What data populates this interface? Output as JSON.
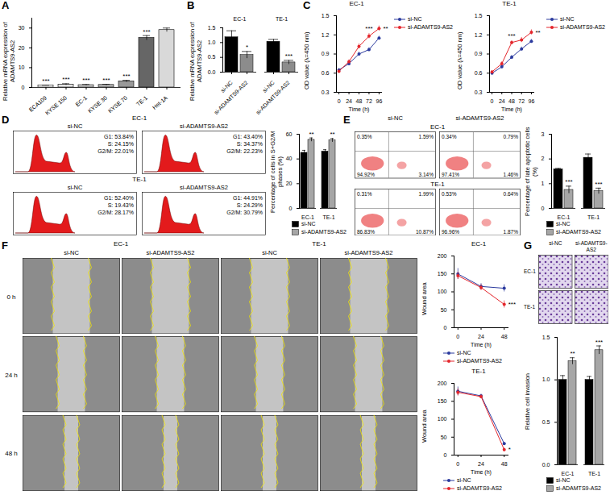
{
  "chart_data": [
    {
      "panel": "A",
      "type": "bar",
      "y_label": "Relative mRNA expression of ADAMTS9-AS2",
      "categories": [
        "ECA109",
        "KYSE 150",
        "EC-1",
        "KYSE 30",
        "KYSE 70",
        "TE-1",
        "Het-1A"
      ],
      "values": [
        1.0,
        1.5,
        1.2,
        1.3,
        3.1,
        25.0,
        29.0
      ],
      "errors": [
        0.1,
        0.4,
        0.3,
        0.3,
        0.5,
        1.2,
        1.0
      ],
      "significance": [
        "***",
        "***",
        "***",
        "***",
        "***",
        "***",
        null
      ],
      "colors": [
        "#ffffff",
        "#e6e6e6",
        "#cccccc",
        "#b3b3b3",
        "#999999",
        "#666666",
        "#d9d9d9"
      ],
      "ylim": [
        0,
        35
      ],
      "yticks": [
        0,
        10,
        20,
        30
      ]
    },
    {
      "panel": "B",
      "type": "grouped_bar",
      "y_label": "Relative mRNA expression of ADAMTS9-AS2",
      "categories": [
        "EC-1",
        "TE-1"
      ],
      "series": [
        {
          "name": "si-NC",
          "color": "#000000",
          "values": [
            1.18,
            1.03
          ],
          "errors": [
            0.22,
            0.08
          ]
        },
        {
          "name": "si-ADAMTS9-AS2",
          "color": "#8c8c8c",
          "values": [
            0.58,
            0.33
          ],
          "errors": [
            0.12,
            0.07
          ],
          "significance": [
            "*",
            "***"
          ]
        }
      ],
      "ylim": [
        0,
        1.5
      ],
      "yticks": [
        {
          "value": 0,
          "label": "0.0"
        },
        0.5,
        {
          "value": 1,
          "label": "1.0"
        },
        1.5
      ]
    },
    {
      "panel": "C",
      "type": "line",
      "title": "EC-1",
      "x_label": "Time (h)",
      "y_label": "OD value (λ=450 nm)",
      "x": [
        0,
        24,
        48,
        72,
        96
      ],
      "xlim": [
        -6,
        102
      ],
      "xticks": [
        0,
        24,
        48,
        72,
        96
      ],
      "ylim": [
        0.3,
        1.5
      ],
      "yticks": [
        0.3,
        0.6,
        0.9,
        1.2,
        1.5
      ],
      "legend": "right",
      "series": [
        {
          "name": "si-NC",
          "color": "#2b3a9e",
          "marker": "circle",
          "values": [
            0.65,
            0.75,
            0.9,
            0.97,
            1.15
          ],
          "errors": [
            0.02,
            0.03,
            0.03,
            0.03,
            0.03
          ]
        },
        {
          "name": "si-ADAMTS9-AS2",
          "color": "#e4262c",
          "marker": "circle",
          "values": [
            0.63,
            0.78,
            1.02,
            1.18,
            1.3
          ],
          "errors": [
            0.02,
            0.03,
            0.04,
            0.04,
            0.04
          ],
          "significance": [
            null,
            null,
            null,
            "***",
            "**"
          ]
        }
      ]
    },
    {
      "type": "line",
      "title": "TE-1",
      "x_label": "Time (h)",
      "y_label": "OD value (λ=450 nm)",
      "x": [
        0,
        24,
        48,
        72,
        96
      ],
      "xlim": [
        -6,
        102
      ],
      "xticks": [
        0,
        24,
        48,
        72,
        96
      ],
      "ylim": [
        0.3,
        1.5
      ],
      "yticks": [
        0.3,
        0.6,
        0.9,
        1.2,
        1.5
      ],
      "legend": "right",
      "series": [
        {
          "name": "si-NC",
          "color": "#2b3a9e",
          "marker": "circle",
          "values": [
            0.6,
            0.7,
            0.85,
            0.98,
            1.1
          ],
          "errors": [
            0.02,
            0.03,
            0.03,
            0.03,
            0.03
          ]
        },
        {
          "name": "si-ADAMTS9-AS2",
          "color": "#e4262c",
          "marker": "circle",
          "values": [
            0.62,
            0.75,
            1.08,
            1.12,
            1.24
          ],
          "errors": [
            0.02,
            0.03,
            0.03,
            0.04,
            0.04
          ],
          "significance": [
            null,
            null,
            "***",
            null,
            "**"
          ]
        }
      ]
    },
    {
      "type": "grouped_bar",
      "y_label": "Percentage of cells in S+G2/M phases (%)",
      "categories": [
        "EC-1",
        "TE-1"
      ],
      "series": [
        {
          "name": "si-NC",
          "color": "#000000",
          "values": [
            45,
            46
          ],
          "errors": [
            2,
            1.5
          ]
        },
        {
          "name": "si-ADAMTS9-AS2",
          "color": "#a6a6a6",
          "values": [
            55.5,
            55
          ],
          "errors": [
            1.5,
            1.5
          ],
          "significance": [
            "**",
            "**"
          ]
        }
      ],
      "ylim": [
        0,
        60
      ],
      "yticks": [
        0,
        20,
        40,
        60
      ],
      "legend": "bottom"
    },
    {
      "type": "grouped_bar",
      "y_label": "Percentage of late apoptotic cells (%)",
      "categories": [
        "EC-1",
        "TE-1"
      ],
      "series": [
        {
          "name": "si-NC",
          "color": "#000000",
          "values": [
            1.58,
            2.05
          ],
          "errors": [
            0.04,
            0.15
          ]
        },
        {
          "name": "si-ADAMTS9-AS2",
          "color": "#a6a6a6",
          "values": [
            0.75,
            0.7
          ],
          "errors": [
            0.15,
            0.12
          ],
          "significance": [
            "***",
            "***"
          ]
        }
      ],
      "ylim": [
        0,
        3
      ],
      "yticks": [
        0,
        1,
        2,
        3
      ],
      "legend": "bottom"
    },
    {
      "type": "line",
      "title": "EC-1",
      "x_label": "Time (h)",
      "y_label": "Wound area",
      "x": [
        0,
        24,
        48
      ],
      "xlim": [
        -4,
        52
      ],
      "xticks": [
        0,
        24,
        48
      ],
      "ylim": [
        0,
        200
      ],
      "yticks": [
        0,
        50,
        100,
        150,
        200
      ],
      "legend": "bottom",
      "series": [
        {
          "name": "si-NC",
          "color": "#2b3a9e",
          "marker": "circle",
          "values": [
            150,
            115,
            110
          ],
          "errors": [
            15,
            8,
            10
          ]
        },
        {
          "name": "si-ADAMTS9-AS2",
          "color": "#e4262c",
          "marker": "circle",
          "values": [
            145,
            112,
            65
          ],
          "errors": [
            10,
            8,
            10
          ],
          "significance": [
            null,
            null,
            "***"
          ]
        }
      ]
    },
    {
      "type": "line",
      "title": "TE-1",
      "x_label": "Time (h)",
      "y_label": "Wound area",
      "x": [
        0,
        24,
        48
      ],
      "xlim": [
        -4,
        52
      ],
      "xticks": [
        0,
        24,
        48
      ],
      "ylim": [
        0,
        200
      ],
      "yticks": [
        0,
        50,
        100,
        150,
        200
      ],
      "legend": "bottom",
      "series": [
        {
          "name": "si-NC",
          "color": "#2b3a9e",
          "marker": "circle",
          "values": [
            178,
            165,
            32
          ],
          "errors": [
            12,
            5,
            4
          ]
        },
        {
          "name": "si-ADAMTS9-AS2",
          "color": "#e4262c",
          "marker": "circle",
          "values": [
            175,
            163,
            15
          ],
          "errors": [
            10,
            5,
            5
          ],
          "significance": [
            null,
            null,
            "*"
          ]
        }
      ]
    },
    {
      "type": "grouped_bar",
      "y_label": "Relative cell invasion",
      "categories": [
        "EC-1",
        "TE-1"
      ],
      "series": [
        {
          "name": "si-NC",
          "color": "#000000",
          "values": [
            1.0,
            1.0
          ],
          "errors": [
            0.05,
            0.04
          ]
        },
        {
          "name": "si-ADAMTS9-AS2",
          "color": "#a6a6a6",
          "values": [
            1.22,
            1.35
          ],
          "errors": [
            0.04,
            0.05
          ],
          "significance": [
            "**",
            "***"
          ]
        }
      ],
      "ylim": [
        0,
        1.5
      ],
      "yticks": [
        {
          "value": 0,
          "label": "0.0"
        },
        0.5,
        {
          "value": 1,
          "label": "1.0"
        },
        1.5
      ],
      "legend": "bottom"
    }
  ],
  "image_panels": [
    {
      "panel": "D",
      "type": "flow_cytometry_histograms",
      "rows": [
        {
          "title": "EC-1",
          "columns": [
            "si-NC",
            "si-ADAMTS9-AS2"
          ],
          "cells": [
            [
              "G1: 53.84%",
              "S: 24.15%",
              "G2/M: 22.01%"
            ],
            [
              "G1: 43.40%",
              "S: 34.37%",
              "G2/M: 22.23%"
            ]
          ]
        },
        {
          "title": "TE-1",
          "columns": [
            "si-NC",
            "si-ADAMTS9-AS2"
          ],
          "cells": [
            [
              "G1: 52.40%",
              "S: 19.43%",
              "G2/M: 28.17%"
            ],
            [
              "G1: 44.91%",
              "S: 24.29%",
              "G2/M: 30.79%"
            ]
          ]
        }
      ]
    },
    {
      "panel": "E",
      "type": "flow_cytometry_scatter",
      "columns": [
        "si-NC",
        "si-ADAMTS9-AS2"
      ],
      "rows": [
        {
          "title": "EC-1",
          "cells": [
            [
              "0.35%",
              "1.59%",
              "94.92%",
              "3.14%"
            ],
            [
              "0.34%",
              "0.79%",
              "97.41%",
              "1.46%"
            ]
          ]
        },
        {
          "title": "TE-1",
          "cells": [
            [
              "0.31%",
              "1.99%",
              "86.83%",
              "10.87%"
            ],
            [
              "0.53%",
              "0.64%",
              "96.96%",
              "1.87%"
            ]
          ]
        }
      ]
    },
    {
      "panel": "F",
      "type": "wound_healing_micrographs",
      "groups": [
        "EC-1",
        "TE-1"
      ],
      "columns": [
        "si-NC",
        "si-ADAMTS9-AS2"
      ],
      "rows": [
        "0 h",
        "24 h",
        "48 h"
      ]
    },
    {
      "panel": "G",
      "type": "transwell_micrographs",
      "columns": [
        "si-NC",
        "si-ADAMTS9-AS2"
      ],
      "rows": [
        "EC-1",
        "TE-1"
      ]
    }
  ]
}
